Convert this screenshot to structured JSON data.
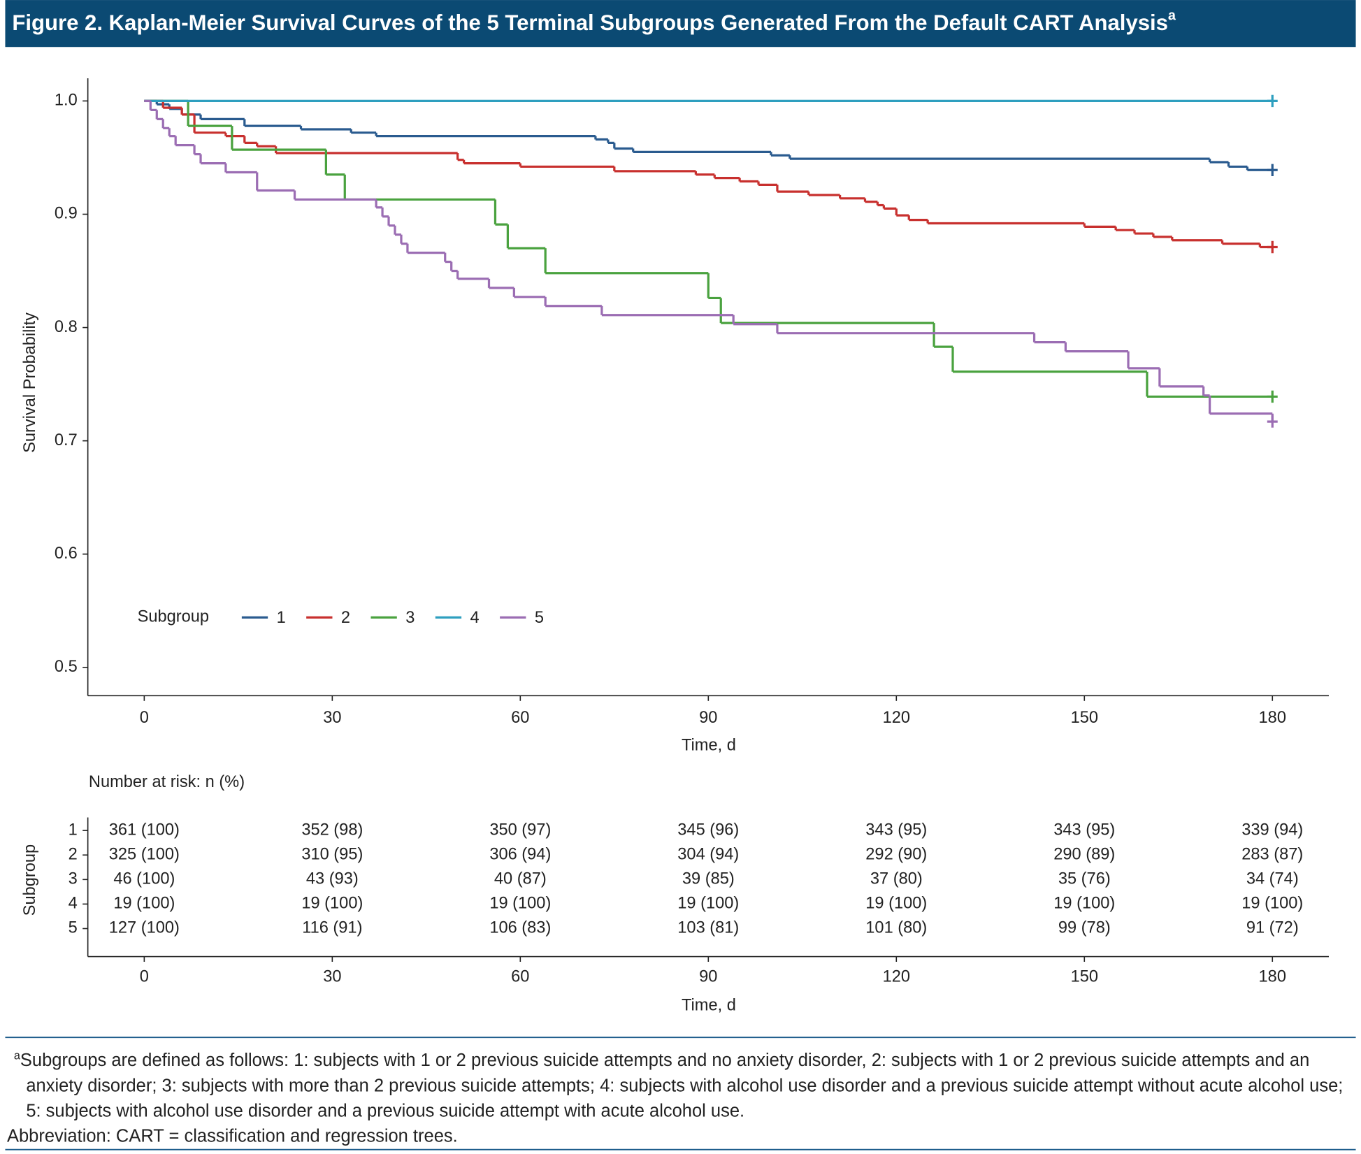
{
  "header": {
    "title": "Figure 2. Kaplan-Meier Survival Curves of the 5 Terminal Subgroups Generated From the Default CART Analysis",
    "title_sup": "a"
  },
  "chart_data": {
    "type": "step",
    "xlabel": "Time, d",
    "ylabel": "Survival Probability",
    "xlim": [
      -9,
      189
    ],
    "ylim": [
      0.475,
      1.02
    ],
    "xticks": [
      0,
      30,
      60,
      90,
      120,
      150,
      180
    ],
    "yticks": [
      {
        "value": 1,
        "label": "1.0"
      },
      0.9,
      0.8,
      0.7,
      0.6,
      0.5
    ],
    "legend_title": "Subgroup",
    "series": [
      {
        "name": "1",
        "color": "#2a5b8f",
        "x": [
          0,
          2,
          4,
          6,
          9,
          16,
          25,
          33,
          37,
          72,
          74,
          75,
          78,
          100,
          103,
          170,
          173,
          176,
          180
        ],
        "values": [
          1,
          0.997,
          0.993,
          0.988,
          0.984,
          0.978,
          0.975,
          0.972,
          0.969,
          0.966,
          0.963,
          0.958,
          0.955,
          0.952,
          0.949,
          0.946,
          0.942,
          0.939,
          0.939
        ]
      },
      {
        "name": "2",
        "color": "#c8302e",
        "x": [
          0,
          3,
          6,
          8,
          13,
          16,
          18,
          21,
          50,
          51,
          60,
          75,
          88,
          91,
          95,
          98,
          101,
          106,
          111,
          115,
          117,
          118,
          120,
          122,
          125,
          150,
          155,
          158,
          161,
          164,
          172,
          178,
          180
        ],
        "values": [
          1,
          0.994,
          0.988,
          0.972,
          0.969,
          0.963,
          0.96,
          0.954,
          0.948,
          0.945,
          0.942,
          0.938,
          0.935,
          0.932,
          0.929,
          0.926,
          0.92,
          0.917,
          0.914,
          0.911,
          0.908,
          0.905,
          0.899,
          0.895,
          0.892,
          0.889,
          0.886,
          0.883,
          0.88,
          0.877,
          0.874,
          0.871,
          0.871
        ]
      },
      {
        "name": "3",
        "color": "#4aa23f",
        "x": [
          0,
          7,
          14,
          29,
          32,
          56,
          58,
          64,
          90,
          92,
          126,
          129,
          160,
          180
        ],
        "values": [
          1,
          0.978,
          0.957,
          0.935,
          0.913,
          0.891,
          0.87,
          0.848,
          0.826,
          0.804,
          0.783,
          0.761,
          0.739,
          0.739
        ]
      },
      {
        "name": "4",
        "color": "#2e9fbf",
        "x": [
          0,
          180
        ],
        "values": [
          1,
          1
        ]
      },
      {
        "name": "5",
        "color": "#9b6db3",
        "x": [
          0,
          1,
          2,
          3,
          4,
          5,
          8,
          9,
          13,
          18,
          24,
          37,
          38,
          39,
          40,
          41,
          42,
          48,
          49,
          50,
          55,
          59,
          64,
          73,
          94,
          101,
          142,
          147,
          157,
          162,
          169,
          170,
          180
        ],
        "values": [
          1,
          0.992,
          0.984,
          0.976,
          0.969,
          0.961,
          0.953,
          0.945,
          0.937,
          0.921,
          0.913,
          0.906,
          0.898,
          0.89,
          0.882,
          0.874,
          0.866,
          0.858,
          0.85,
          0.843,
          0.835,
          0.827,
          0.819,
          0.811,
          0.803,
          0.795,
          0.787,
          0.779,
          0.764,
          0.748,
          0.74,
          0.724,
          0.717
        ]
      }
    ],
    "risk_table": {
      "title": "Number at risk: n (%)",
      "ylabel": "Subgroup",
      "rows": [
        {
          "name": "1",
          "cells": [
            "361 (100)",
            "352 (98)",
            "350 (97)",
            "345 (96)",
            "343 (95)",
            "343 (95)",
            "339 (94)"
          ]
        },
        {
          "name": "2",
          "cells": [
            "325 (100)",
            "310 (95)",
            "306 (94)",
            "304 (94)",
            "292 (90)",
            "290 (89)",
            "283 (87)"
          ]
        },
        {
          "name": "3",
          "cells": [
            "46 (100)",
            "43 (93)",
            "40 (87)",
            "39 (85)",
            "37 (80)",
            "35 (76)",
            "34 (74)"
          ]
        },
        {
          "name": "4",
          "cells": [
            "19 (100)",
            "19 (100)",
            "19 (100)",
            "19 (100)",
            "19 (100)",
            "19 (100)",
            "19 (100)"
          ]
        },
        {
          "name": "5",
          "cells": [
            "127 (100)",
            "116 (91)",
            "106 (83)",
            "103 (81)",
            "101 (80)",
            "99 (78)",
            "91 (72)"
          ]
        }
      ]
    }
  },
  "footnote": {
    "marker": "a",
    "text": "Subgroups are defined as follows: 1: subjects with 1 or 2 previous suicide attempts and no anxiety disorder, 2: subjects with 1 or 2 previous suicide attempts and an anxiety disorder; 3: subjects with more than 2 previous suicide attempts; 4: subjects with alcohol use disorder and a previous suicide attempt without acute alcohol use; 5: subjects with alcohol use disorder and a previous suicide attempt with acute alcohol use.",
    "abbreviation": "Abbreviation: CART = classification and regression trees."
  }
}
